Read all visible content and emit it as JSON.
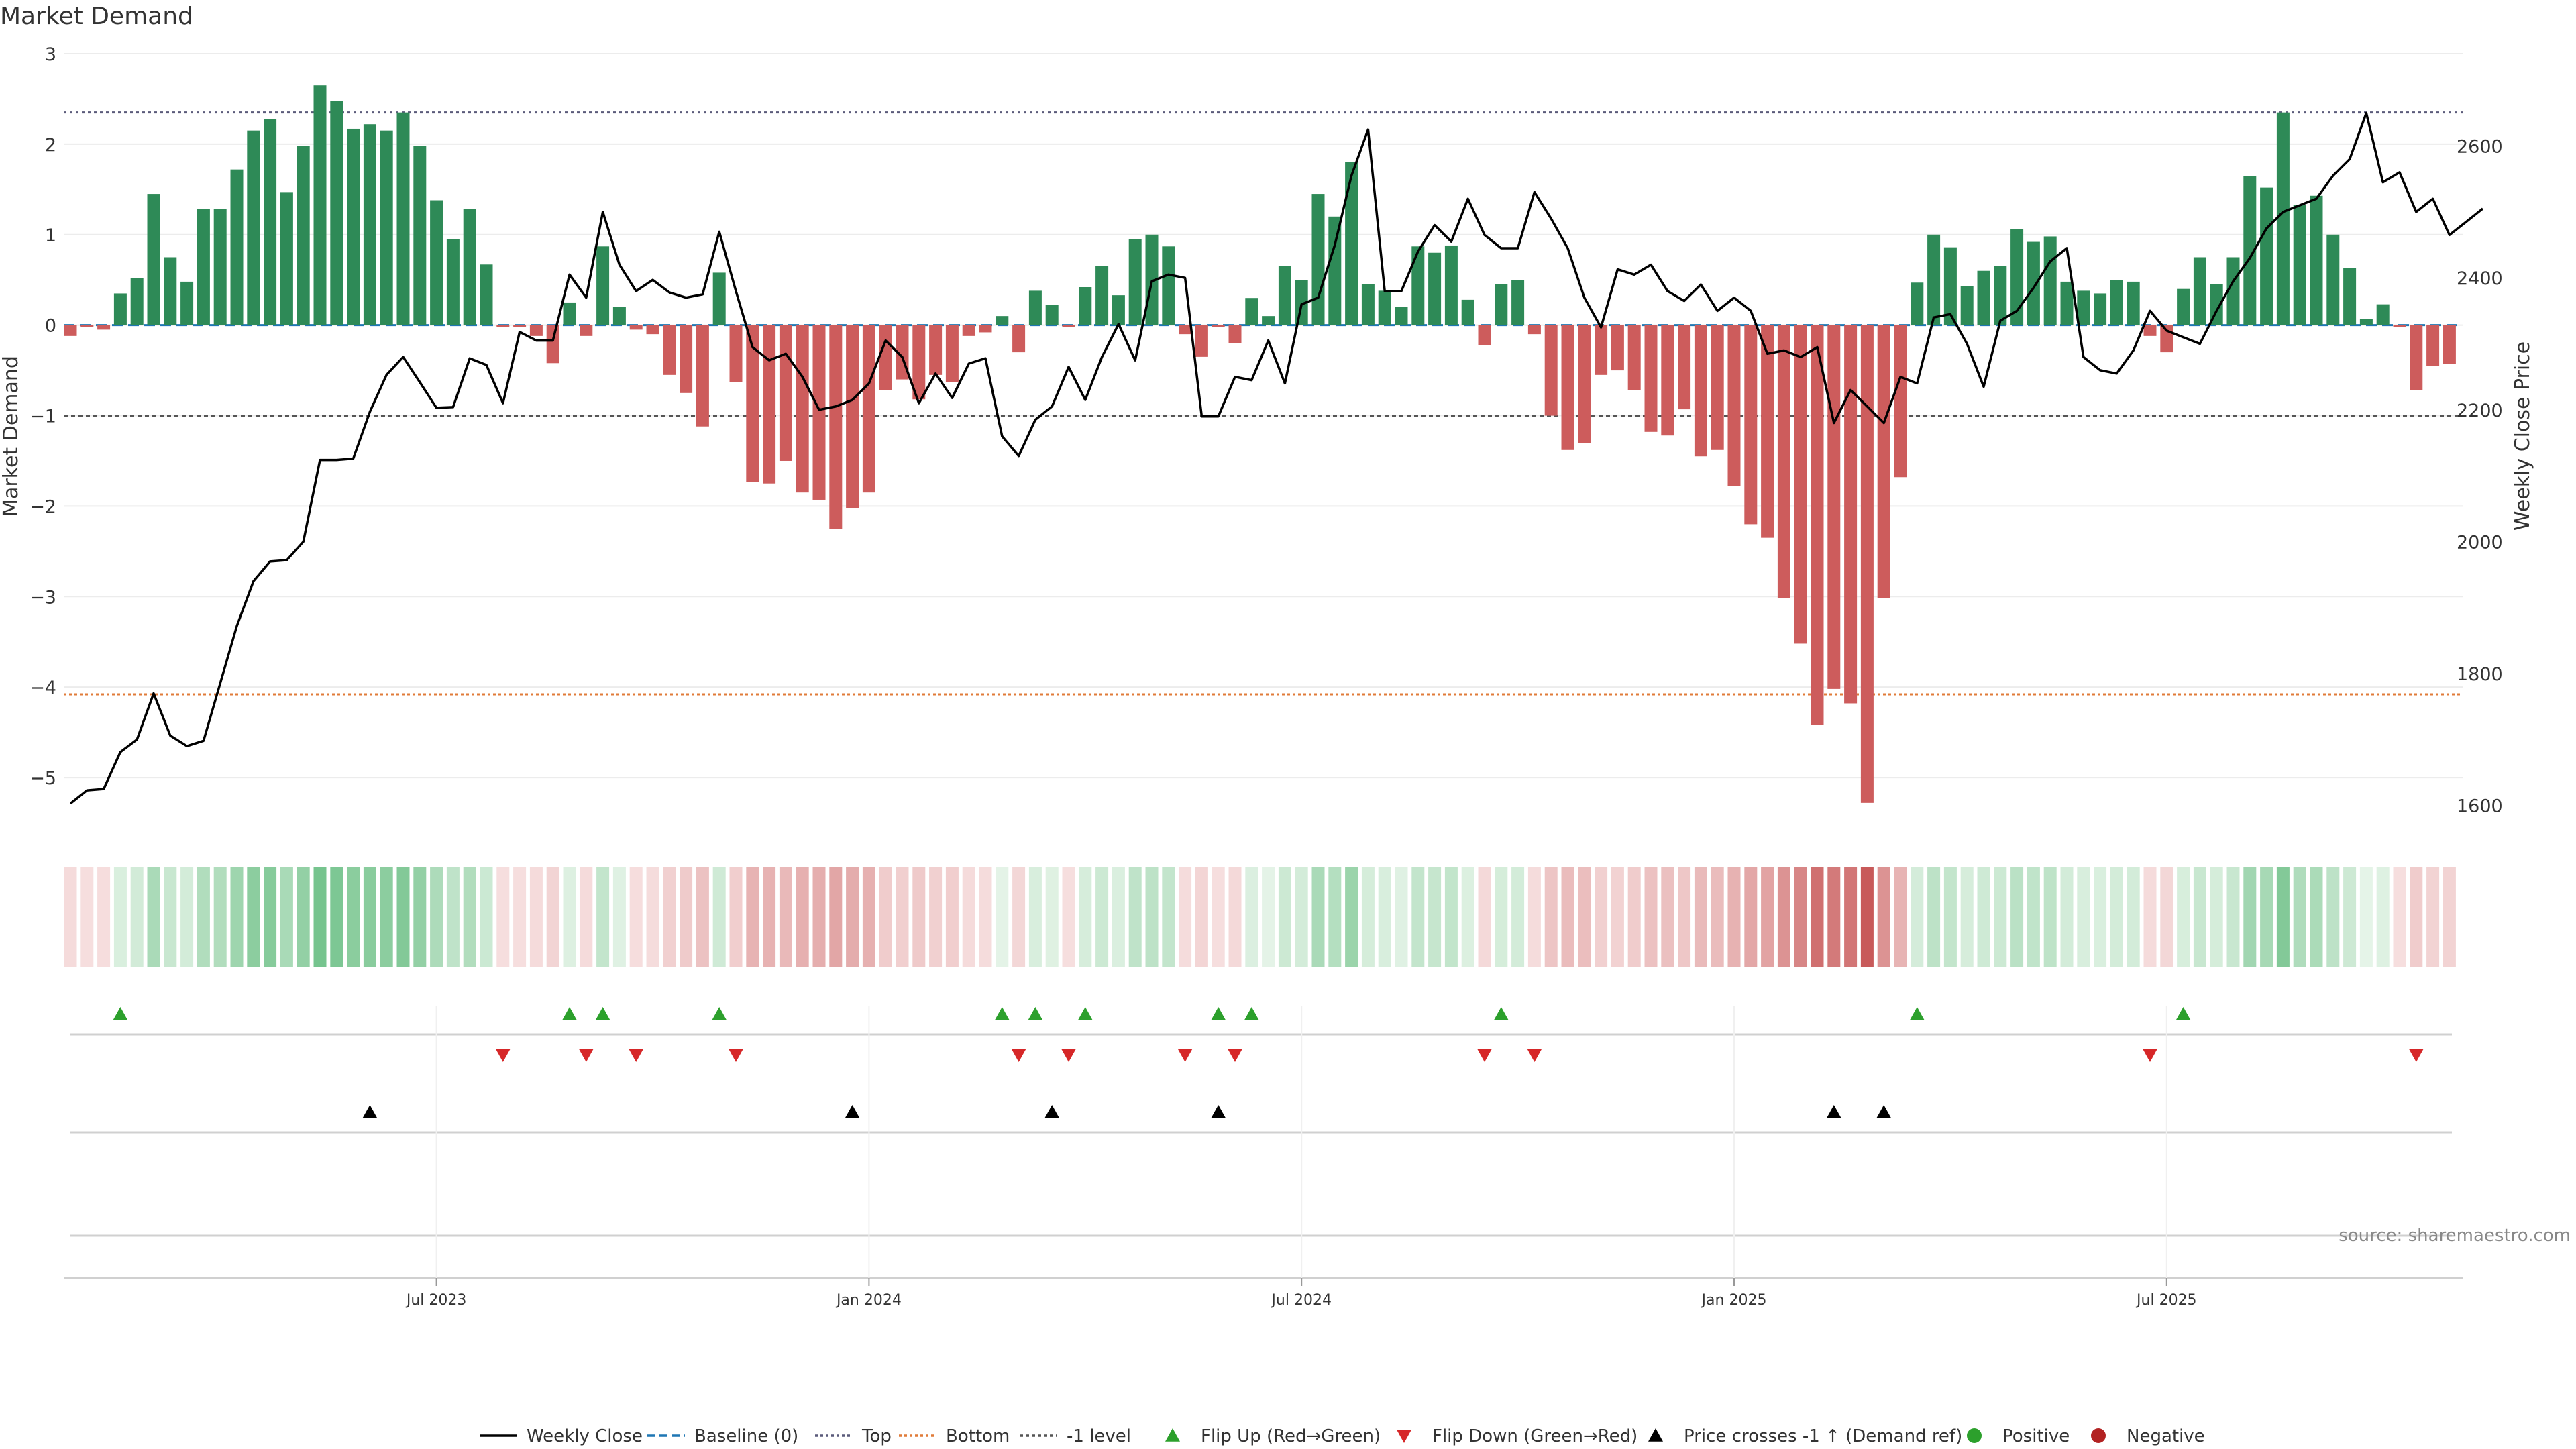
{
  "chart_data": {
    "type": "bar",
    "title": "Market Demand",
    "ylabel_left": "Market Demand",
    "ylabel_right": "Weekly Close Price",
    "ylim_left": [
      -5.6,
      3.0
    ],
    "ylim_right": [
      1560,
      2740
    ],
    "left_ticks": [
      "3",
      "2",
      "1",
      "0",
      "−1",
      "−2",
      "−3",
      "−4",
      "−5"
    ],
    "left_tick_values": [
      3,
      2,
      1,
      0,
      -1,
      -2,
      -3,
      -4,
      -5
    ],
    "right_ticks": [
      "2600",
      "2400",
      "2200",
      "2000",
      "1800",
      "1600"
    ],
    "right_tick_values": [
      2600,
      2400,
      2200,
      2000,
      1800,
      1600
    ],
    "x_tick_labels": [
      {
        "label": "Jul 2023",
        "week": 22
      },
      {
        "label": "Jan 2024",
        "week": 48
      },
      {
        "label": "Jul 2024",
        "week": 74
      },
      {
        "label": "Jan 2025",
        "week": 100
      },
      {
        "label": "Jul 2025",
        "week": 126
      }
    ],
    "levels": {
      "top": 2.35,
      "bottom": -4.08,
      "minus_one": -1.0,
      "baseline": 0
    },
    "demand": [
      -0.12,
      -0.02,
      -0.05,
      0.35,
      0.52,
      1.45,
      0.75,
      0.48,
      1.28,
      1.28,
      1.72,
      2.15,
      2.28,
      1.47,
      1.98,
      2.65,
      2.48,
      2.17,
      2.22,
      2.15,
      2.35,
      1.98,
      1.38,
      0.95,
      1.28,
      0.67,
      -0.02,
      -0.02,
      -0.12,
      -0.42,
      0.25,
      -0.12,
      0.87,
      0.2,
      -0.05,
      -0.1,
      -0.55,
      -0.75,
      -1.12,
      0.58,
      -0.63,
      -1.73,
      -1.75,
      -1.5,
      -1.85,
      -1.93,
      -2.25,
      -2.02,
      -1.85,
      -0.72,
      -0.6,
      -0.82,
      -0.55,
      -0.63,
      -0.12,
      -0.08,
      0.1,
      -0.3,
      0.38,
      0.22,
      -0.02,
      0.42,
      0.65,
      0.33,
      0.95,
      1.0,
      0.87,
      -0.1,
      -0.35,
      -0.02,
      -0.2,
      0.3,
      0.1,
      0.65,
      0.5,
      1.45,
      1.2,
      1.8,
      0.45,
      0.38,
      0.2,
      0.87,
      0.8,
      0.88,
      0.28,
      -0.22,
      0.45,
      0.5,
      -0.1,
      -1.0,
      -1.38,
      -1.3,
      -0.55,
      -0.5,
      -0.72,
      -1.18,
      -1.22,
      -0.93,
      -1.45,
      -1.38,
      -1.78,
      -2.2,
      -2.35,
      -3.02,
      -3.52,
      -4.42,
      -4.02,
      -4.18,
      -5.28,
      -3.02,
      -1.68,
      0.47,
      1.0,
      0.86,
      0.43,
      0.6,
      0.65,
      1.06,
      0.92,
      0.98,
      0.48,
      0.38,
      0.35,
      0.5,
      0.48,
      -0.12,
      -0.3,
      0.4,
      0.75,
      0.45,
      0.75,
      1.65,
      1.52,
      2.35,
      1.33,
      1.43,
      1.0,
      0.63,
      0.07,
      0.23,
      -0.02,
      -0.72,
      -0.45,
      -0.43
    ],
    "weekly_close": [
      1603,
      1623,
      1625,
      1681,
      1700,
      1770,
      1706,
      1690,
      1698,
      1785,
      1872,
      1940,
      1970,
      1972,
      2000,
      2124,
      2124,
      2126,
      2197,
      2253,
      2280,
      2242,
      2203,
      2204,
      2278,
      2268,
      2210,
      2318,
      2305,
      2305,
      2405,
      2370,
      2500,
      2420,
      2380,
      2397,
      2378,
      2370,
      2375,
      2470,
      2380,
      2295,
      2275,
      2285,
      2250,
      2200,
      2205,
      2215,
      2240,
      2305,
      2280,
      2210,
      2255,
      2218,
      2270,
      2278,
      2160,
      2130,
      2185,
      2205,
      2265,
      2215,
      2280,
      2330,
      2275,
      2395,
      2405,
      2400,
      2190,
      2190,
      2250,
      2245,
      2305,
      2240,
      2360,
      2370,
      2450,
      2555,
      2625,
      2380,
      2380,
      2440,
      2480,
      2455,
      2520,
      2465,
      2445,
      2445,
      2530,
      2490,
      2445,
      2370,
      2325,
      2413,
      2405,
      2420,
      2380,
      2365,
      2390,
      2350,
      2370,
      2350,
      2285,
      2290,
      2280,
      2295,
      2180,
      2230,
      2205,
      2180,
      2250,
      2240,
      2340,
      2345,
      2300,
      2235,
      2335,
      2350,
      2385,
      2425,
      2445,
      2280,
      2260,
      2255,
      2290,
      2350,
      2320,
      2310,
      2300,
      2350,
      2395,
      2430,
      2475,
      2500,
      2510,
      2520,
      2555,
      2580,
      2650,
      2545,
      2560,
      2500,
      2520,
      2465,
      2485,
      2505
    ],
    "flip_up_weeks": [
      3,
      30,
      32,
      39,
      56,
      58,
      61,
      69,
      71,
      86,
      111,
      127
    ],
    "flip_down_weeks": [
      26,
      31,
      34,
      40,
      57,
      60,
      67,
      70,
      85,
      88,
      125,
      141
    ],
    "price_cross_weeks": [
      18,
      47,
      59,
      69,
      106,
      109
    ],
    "legend": [
      "Weekly Close",
      "Baseline (0)",
      "Top",
      "Bottom",
      "-1 level",
      "Flip Up (Red→Green)",
      "Flip Down (Green→Red)",
      "Price crosses -1 ↑ (Demand ref)",
      "Positive",
      "Negative"
    ],
    "source": "source: sharemaestro.com",
    "colors": {
      "positive": "#2e8a57",
      "negative": "#cd5c5c",
      "price": "#000000",
      "flip_up": "#2ca02c",
      "flip_down": "#d62728",
      "cross": "#000000",
      "top_line": "#5a5a7a",
      "bottom_line": "#e07b39",
      "minus_one_line": "#555555",
      "baseline": "#1f77b4",
      "legend_positive": "#2ca02c",
      "legend_negative": "#b22222"
    }
  }
}
